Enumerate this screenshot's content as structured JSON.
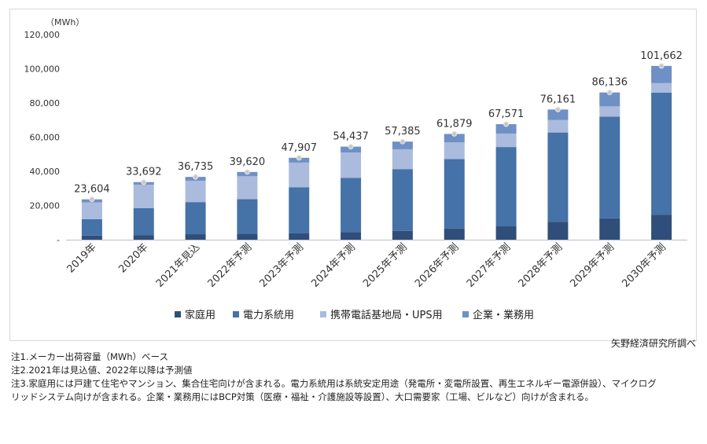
{
  "chart_data": {
    "type": "bar",
    "stacked": true,
    "unit_label": "（MWh）",
    "categories": [
      "2019年",
      "2020年",
      "2021年見込",
      "2022年予測",
      "2023年予測",
      "2024年予測",
      "2025年予測",
      "2026年予測",
      "2027年予測",
      "2028年予測",
      "2029年予測",
      "2030年予測"
    ],
    "series": [
      {
        "name": "家庭用",
        "color": "#2f4f7a",
        "values": [
          2400,
          2700,
          3200,
          3500,
          3700,
          4500,
          5200,
          6500,
          7800,
          10500,
          12500,
          14500
        ]
      },
      {
        "name": "電力系統用",
        "color": "#4572a7",
        "values": [
          9600,
          15800,
          18800,
          20200,
          27000,
          31700,
          36100,
          40700,
          46400,
          52200,
          59500,
          71500
        ]
      },
      {
        "name": "携帯電話基地局・UPS用",
        "color": "#aabbdd",
        "values": [
          9800,
          13700,
          12500,
          13400,
          14400,
          14800,
          11600,
          9800,
          7900,
          7300,
          6000,
          5600
        ]
      },
      {
        "name": "企業・業務用",
        "color": "#6f90c4",
        "values": [
          1804,
          1492,
          2235,
          2520,
          2807,
          3437,
          4485,
          4879,
          5471,
          6161,
          8136,
          10062
        ]
      }
    ],
    "totals": [
      23604,
      33692,
      36735,
      39620,
      47907,
      54437,
      57385,
      61879,
      67571,
      76161,
      86136,
      101662
    ],
    "total_labels": [
      "23,604",
      "33,692",
      "36,735",
      "39,620",
      "47,907",
      "54,437",
      "57,385",
      "61,879",
      "67,571",
      "76,161",
      "86,136",
      "101,662"
    ],
    "ylim": [
      0,
      120000
    ],
    "yticks": [
      0,
      20000,
      40000,
      60000,
      80000,
      100000,
      120000
    ],
    "ytick_labels": [
      "-",
      "20,000",
      "40,000",
      "60,000",
      "80,000",
      "100,000",
      "120,000"
    ],
    "legend_position": "bottom",
    "grid": false
  },
  "source": "矢野経済研究所調べ",
  "notes": [
    "注1.メーカー出荷容量（MWh）ベース",
    "注2.2021年は見込値、2022年以降は予測値",
    "注3.家庭用には戸建て住宅やマンション、集合住宅向けが含まれる。電力系統用は系統安定用途（発電所・変電所設置、再生エネルギー電源併設）、マイクログ",
    "リッドシステム向けが含まれる。企業・業務用にはBCP対策（医療・福祉・介護施設等設置）、大口需要家（工場、ビルなど）向けが含まれる。"
  ]
}
